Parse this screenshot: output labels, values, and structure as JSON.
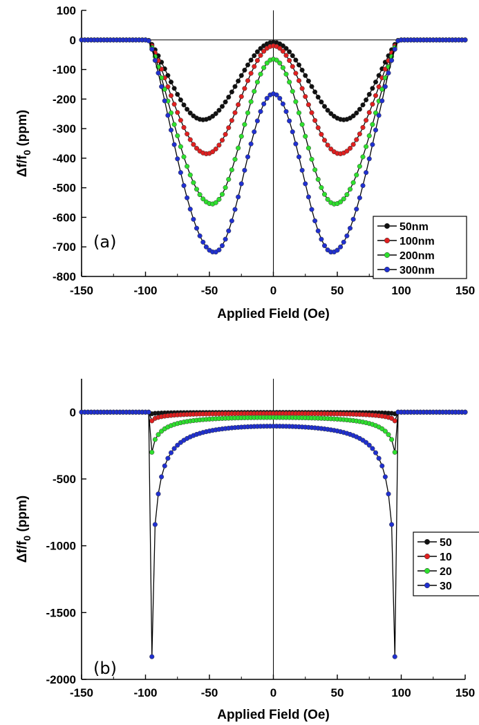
{
  "chart_data": [
    {
      "type": "line",
      "panel_label": "(a)",
      "xlabel": "Applied Field (Oe)",
      "ylabel_main": "Δf/f",
      "ylabel_sub": "0",
      "ylabel_unit": " (ppm)",
      "xlim": [
        -150,
        150
      ],
      "ylim": [
        -800,
        100
      ],
      "xticks": [
        -150,
        -100,
        -50,
        0,
        50,
        100,
        150
      ],
      "yticks": [
        100,
        0,
        -100,
        -200,
        -300,
        -400,
        -500,
        -600,
        -700,
        -800
      ],
      "legend_position": "bottom-right",
      "series": [
        {
          "name": "50nm",
          "color": "#111111",
          "min_value": -270,
          "min_at": 55,
          "center_value": -8,
          "switch_field": 98
        },
        {
          "name": "100nm",
          "color": "#e02020",
          "min_value": -385,
          "min_at": 52,
          "center_value": -20,
          "switch_field": 98
        },
        {
          "name": "200nm",
          "color": "#2ee02e",
          "min_value": -555,
          "min_at": 48,
          "center_value": -65,
          "switch_field": 98
        },
        {
          "name": "300nm",
          "color": "#2030d0",
          "min_value": -718,
          "min_at": 46,
          "center_value": -182,
          "switch_field": 98
        }
      ]
    },
    {
      "type": "line",
      "panel_label": "(b)",
      "xlabel": "Applied Field (Oe)",
      "ylabel_main": "Δf/f",
      "ylabel_sub": "0",
      "ylabel_unit": " (ppm)",
      "xlim": [
        -150,
        150
      ],
      "ylim": [
        -2000,
        250
      ],
      "xticks": [
        -150,
        -100,
        -50,
        0,
        50,
        100,
        150
      ],
      "yticks": [
        0,
        -500,
        -1000,
        -1500,
        -2000
      ],
      "legend_position": "right",
      "series": [
        {
          "name": "50",
          "color": "#111111",
          "edge_value": -12,
          "center_value": -2,
          "switch_field": 96
        },
        {
          "name": "10",
          "color": "#e02020",
          "edge_value": -65,
          "center_value": -10,
          "switch_field": 96
        },
        {
          "name": "20",
          "color": "#2ee02e",
          "edge_value": -300,
          "center_value": -40,
          "switch_field": 96
        },
        {
          "name": "30",
          "color": "#2030d0",
          "edge_value": -1830,
          "center_value": -105,
          "switch_field": 96
        }
      ]
    }
  ]
}
